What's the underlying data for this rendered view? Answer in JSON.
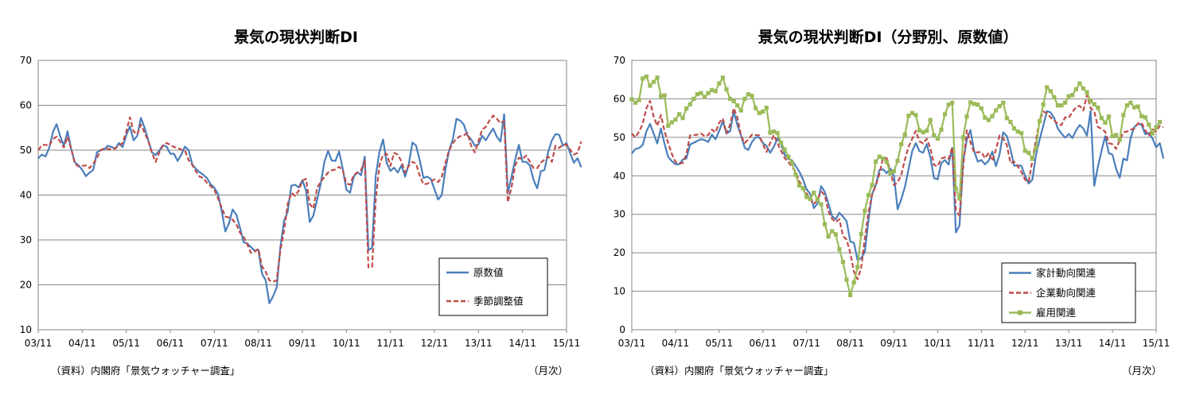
{
  "chart_data": [
    {
      "type": "line",
      "title": "景気の現状判断DI",
      "xlabel": "",
      "ylabel": "",
      "ylim": [
        10,
        70
      ],
      "yticks": [
        10,
        20,
        30,
        40,
        50,
        60,
        70
      ],
      "xticks": [
        "03/11",
        "04/11",
        "05/11",
        "06/11",
        "07/11",
        "08/11",
        "09/11",
        "10/11",
        "11/11",
        "12/11",
        "13/11",
        "14/11",
        "15/11"
      ],
      "grid": "horizontal",
      "legend": "bottom-right",
      "source_note": "（資料）内閣府「景気ウォッチャー調査」",
      "unit_note": "（月次）",
      "x_start": "2003-11",
      "series": [
        {
          "name": "原数値",
          "color": "#4a7ebb",
          "style": "solid",
          "values": [
            48.2,
            49.0,
            48.6,
            50.5,
            54.0,
            55.8,
            53.1,
            51.0,
            54.2,
            50.2,
            47.3,
            46.6,
            45.6,
            44.2,
            45.0,
            45.6,
            49.5,
            50.0,
            50.2,
            51.0,
            50.7,
            50.3,
            51.6,
            50.7,
            53.3,
            55.3,
            52.2,
            53.2,
            57.2,
            55.0,
            52.2,
            49.5,
            48.9,
            49.9,
            51.1,
            50.8,
            49.2,
            49.2,
            47.6,
            49.0,
            50.8,
            50.0,
            46.8,
            45.8,
            45.1,
            44.5,
            43.8,
            42.4,
            41.6,
            40.3,
            36.5,
            31.9,
            33.7,
            36.8,
            35.6,
            32.7,
            29.5,
            29.2,
            28.4,
            27.6,
            27.8,
            22.5,
            21.0,
            15.9,
            17.4,
            19.4,
            28.4,
            34.2,
            36.3,
            42.1,
            42.3,
            41.7,
            43.3,
            41.0,
            34.0,
            35.4,
            38.9,
            42.5,
            47.4,
            49.8,
            47.7,
            47.6,
            49.7,
            45.9,
            41.2,
            40.5,
            44.1,
            45.1,
            44.4,
            48.6,
            27.7,
            28.3,
            44.3,
            49.6,
            52.4,
            47.1,
            45.4,
            46.1,
            45.0,
            46.6,
            44.1,
            46.9,
            51.7,
            51.0,
            47.7,
            43.8,
            44.1,
            43.6,
            41.3,
            39.0,
            40.0,
            45.8,
            49.9,
            52.4,
            57.0,
            56.6,
            55.7,
            53.3,
            52.4,
            51.0,
            51.3,
            53.2,
            52.2,
            53.6,
            54.8,
            53.0,
            51.9,
            58.0,
            40.4,
            44.1,
            47.9,
            51.2,
            47.4,
            47.4,
            46.6,
            43.4,
            41.5,
            45.3,
            45.6,
            49.6,
            52.2,
            53.6,
            53.4,
            51.0,
            51.6,
            49.3,
            47.2,
            48.2,
            46.2
          ]
        },
        {
          "name": "季節調整値",
          "color": "#be4b48",
          "style": "dashed",
          "values": [
            50.0,
            51.1,
            51.2,
            51.0,
            52.5,
            53.0,
            51.9,
            50.6,
            53.0,
            50.3,
            47.0,
            46.4,
            46.5,
            46.6,
            46.0,
            47.0,
            48.2,
            50.0,
            50.4,
            50.3,
            50.2,
            50.4,
            51.0,
            51.6,
            54.1,
            57.3,
            54.2,
            53.5,
            55.7,
            53.9,
            52.1,
            49.4,
            47.4,
            49.5,
            51.0,
            51.6,
            51.2,
            50.7,
            50.5,
            50.1,
            49.9,
            47.8,
            46.7,
            45.3,
            44.1,
            43.8,
            42.7,
            42.0,
            41.2,
            39.3,
            37.2,
            35.2,
            35.0,
            34.5,
            33.5,
            31.6,
            30.7,
            29.0,
            27.1,
            27.4,
            28.0,
            24.1,
            22.9,
            21.0,
            20.7,
            21.0,
            27.6,
            32.0,
            38.0,
            40.5,
            39.8,
            41.0,
            43.2,
            43.6,
            38.0,
            37.0,
            41.5,
            43.0,
            44.0,
            45.0,
            45.5,
            45.7,
            46.3,
            45.6,
            42.6,
            42.3,
            44.5,
            45.0,
            45.5,
            47.7,
            23.9,
            24.0,
            39.0,
            46.6,
            49.0,
            49.2,
            46.5,
            49.4,
            49.0,
            47.5,
            45.0,
            46.5,
            47.4,
            47.0,
            44.3,
            42.4,
            42.5,
            43.0,
            43.5,
            42.9,
            44.0,
            47.2,
            50.0,
            51.5,
            52.6,
            53.1,
            53.3,
            53.8,
            51.0,
            49.5,
            52.0,
            54.6,
            55.2,
            56.6,
            57.7,
            57.0,
            56.0,
            56.5,
            38.4,
            41.7,
            46.6,
            48.3,
            48.0,
            48.8,
            47.4,
            46.0,
            46.0,
            47.2,
            47.9,
            48.6,
            47.4,
            51.0,
            50.5,
            51.2,
            51.2,
            50.1,
            49.0,
            49.4,
            51.9
          ]
        }
      ]
    },
    {
      "type": "line",
      "title": "景気の現状判断DI（分野別、原数値）",
      "xlabel": "",
      "ylabel": "",
      "ylim": [
        0,
        70
      ],
      "yticks": [
        0,
        10,
        20,
        30,
        40,
        50,
        60,
        70
      ],
      "xticks": [
        "03/11",
        "04/11",
        "05/11",
        "06/11",
        "07/11",
        "08/11",
        "09/11",
        "10/11",
        "11/11",
        "12/11",
        "13/11",
        "14/11",
        "15/11"
      ],
      "grid": "horizontal",
      "legend": "bottom-right",
      "source_note": "（資料）内閣府「景気ウォッチャー調査」",
      "unit_note": "（月次）",
      "x_start": "2003-11",
      "series": [
        {
          "name": "家計動向関連",
          "color": "#4a7ebb",
          "style": "solid",
          "values": [
            45.8,
            47.0,
            47.2,
            48.0,
            51.5,
            53.5,
            51.0,
            48.4,
            52.3,
            48.3,
            44.9,
            43.8,
            43.0,
            43.0,
            44.2,
            44.5,
            48.1,
            48.6,
            49.1,
            49.5,
            49.3,
            48.8,
            50.7,
            49.5,
            51.7,
            54.2,
            51.0,
            51.6,
            56.7,
            53.2,
            50.5,
            47.3,
            46.7,
            48.8,
            50.0,
            50.0,
            48.5,
            47.8,
            46.0,
            47.5,
            49.7,
            48.3,
            45.5,
            44.4,
            44.0,
            42.6,
            41.1,
            39.1,
            36.5,
            35.3,
            31.6,
            32.8,
            37.3,
            35.8,
            32.8,
            29.5,
            28.7,
            30.4,
            29.4,
            28.2,
            22.9,
            22.6,
            18.1,
            18.6,
            20.2,
            28.5,
            35.3,
            37.6,
            41.5,
            41.7,
            40.7,
            41.9,
            40.0,
            31.3,
            33.9,
            37.1,
            41.7,
            46.4,
            48.5,
            46.4,
            46.0,
            48.2,
            44.8,
            39.4,
            39.1,
            43.3,
            44.1,
            42.9,
            47.3,
            25.3,
            27.1,
            43.8,
            49.4,
            51.9,
            46.5,
            43.7,
            44.1,
            43.0,
            43.9,
            46.3,
            42.5,
            45.6,
            51.3,
            50.3,
            46.9,
            42.6,
            42.7,
            42.6,
            40.0,
            38.0,
            39.0,
            45.4,
            49.4,
            53.0,
            56.8,
            56.5,
            55.0,
            52.3,
            51.0,
            49.9,
            50.9,
            49.8,
            51.8,
            53.2,
            52.3,
            50.4,
            56.9,
            37.4,
            42.3,
            46.5,
            50.3,
            45.9,
            45.5,
            41.8,
            39.5,
            44.5,
            44.0,
            49.9,
            52.7,
            53.5,
            53.3,
            50.8,
            51.1,
            49.7,
            47.4,
            48.5,
            44.5
          ]
        },
        {
          "name": "企業動向関連",
          "color": "#be4b48",
          "style": "dashed",
          "values": [
            51.0,
            50.0,
            51.5,
            53.5,
            57.5,
            59.5,
            55.4,
            53.0,
            55.8,
            51.6,
            48.5,
            45.7,
            43.6,
            43.2,
            43.3,
            45.6,
            50.5,
            50.6,
            50.7,
            51.0,
            50.3,
            50.6,
            52.0,
            51.3,
            53.8,
            54.9,
            51.0,
            53.3,
            57.6,
            55.1,
            50.4,
            48.5,
            49.5,
            50.7,
            50.6,
            50.5,
            48.3,
            46.2,
            48.5,
            50.6,
            48.5,
            46.5,
            44.6,
            43.6,
            42.3,
            41.1,
            38.5,
            37.2,
            35.4,
            33.9,
            32.6,
            33.8,
            35.9,
            35.0,
            30.8,
            28.8,
            28.0,
            28.7,
            24.4,
            23.4,
            20.0,
            15.1,
            13.1,
            16.1,
            23.7,
            30.5,
            35.1,
            37.5,
            40.5,
            44.6,
            44.6,
            41.0,
            37.6,
            38.3,
            40.3,
            44.2,
            47.5,
            49.6,
            51.7,
            49.0,
            48.4,
            49.6,
            47.2,
            42.8,
            42.5,
            44.5,
            44.8,
            44.4,
            47.4,
            31.1,
            29.6,
            42.3,
            51.8,
            48.8,
            46.1,
            46.1,
            46.2,
            44.6,
            46.0,
            43.9,
            46.8,
            50.5,
            49.7,
            48.0,
            43.3,
            43.7,
            42.5,
            41.0,
            39.0,
            38.5,
            43.9,
            49.3,
            54.3,
            56.7,
            56.3,
            55.2,
            54.4,
            53.5,
            53.2,
            55.2,
            55.1,
            56.6,
            57.8,
            58.2,
            57.0,
            61.0,
            57.6,
            56.8,
            52.7,
            52.2,
            51.5,
            48.5,
            48.2,
            47.0,
            49.3,
            51.3,
            51.5,
            52.0,
            52.3,
            53.6,
            53.8,
            51.8,
            50.5,
            52.1,
            51.5,
            53.0,
            52.6
          ]
        },
        {
          "name": "雇用関連",
          "color": "#9bbb59",
          "style": "solid-square-markers",
          "values": [
            59.9,
            59.0,
            59.7,
            65.3,
            65.8,
            63.4,
            64.4,
            65.5,
            60.7,
            60.9,
            53.0,
            53.9,
            54.6,
            56.0,
            55.0,
            57.5,
            58.6,
            60.0,
            61.2,
            61.5,
            60.5,
            61.5,
            62.3,
            62.0,
            64.0,
            65.5,
            62.5,
            60.0,
            59.4,
            58.3,
            57.0,
            60.0,
            61.2,
            60.8,
            57.6,
            56.3,
            56.7,
            57.7,
            51.2,
            51.5,
            51.1,
            48.6,
            46.8,
            45.0,
            43.4,
            40.3,
            37.5,
            36.8,
            34.5,
            34.0,
            35.6,
            33.8,
            32.6,
            27.4,
            24.2,
            25.6,
            24.8,
            20.9,
            17.6,
            13.0,
            9.0,
            12.3,
            16.3,
            24.9,
            30.9,
            35.0,
            37.6,
            43.7,
            45.0,
            44.5,
            43.6,
            40.7,
            41.2,
            43.9,
            48.2,
            50.7,
            55.6,
            56.3,
            55.8,
            51.8,
            51.3,
            51.7,
            54.5,
            50.5,
            49.7,
            52.0,
            56.0,
            58.5,
            59.0,
            36.7,
            34.1,
            50.0,
            55.4,
            59.1,
            58.7,
            58.5,
            57.5,
            55.1,
            54.5,
            55.5,
            57.0,
            58.1,
            59.0,
            55.0,
            54.0,
            52.3,
            51.5,
            51.1,
            46.5,
            46.0,
            44.4,
            47.3,
            54.2,
            58.5,
            63.0,
            62.0,
            60.4,
            58.3,
            58.3,
            59.0,
            60.7,
            61.0,
            62.5,
            64.0,
            62.7,
            61.7,
            59.4,
            58.6,
            57.7,
            55.0,
            53.8,
            55.4,
            50.3,
            50.6,
            49.4,
            55.8,
            58.3,
            59.0,
            57.8,
            58.0,
            55.5,
            55.2,
            53.3,
            51.0,
            52.6,
            54.0
          ]
        }
      ]
    }
  ]
}
